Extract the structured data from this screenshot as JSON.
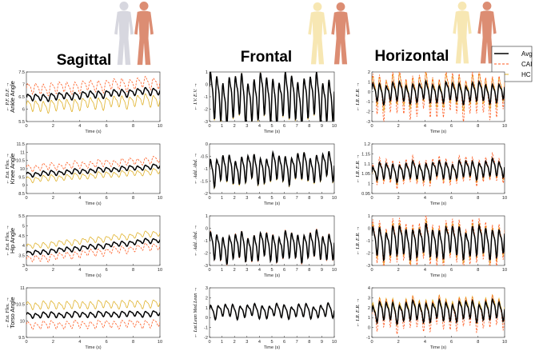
{
  "titles": {
    "sagittal": "Sagittal",
    "frontal": "Frontal",
    "horizontal": "Horizontal"
  },
  "legend": [
    {
      "label": "Avg",
      "color": "#000000",
      "style": "solid"
    },
    {
      "label": "CAI",
      "color": "#ff5a1f",
      "style": "dashed"
    },
    {
      "label": "HC",
      "color": "#e0b22a",
      "style": "solid"
    }
  ],
  "colors": {
    "avg": "#000000",
    "cai": "#ff5a1f",
    "hc": "#e0b22a",
    "figure_light": "#f7e7b3",
    "figure_skin": "#dc8d73",
    "figure_grey": "#d7d7df"
  },
  "chart_data": [
    {
      "type": "line",
      "row": 0,
      "col": 0,
      "ylabel": "Ankle Angle",
      "ydir": "← P.F.   D.F. →",
      "xlabel": "Time (s)",
      "xlim": [
        0,
        10
      ],
      "ylim": [
        5.5,
        7.5
      ],
      "yticks": [
        "5.5",
        "6",
        "6.5",
        "7",
        "7.5"
      ],
      "xticks": [
        "0",
        "2",
        "4",
        "6",
        "8",
        "10"
      ],
      "freq_hz": 1.7,
      "series": [
        {
          "name": "Avg",
          "mean": 6.6,
          "amplitude": 0.12,
          "trend": 0.3
        },
        {
          "name": "CAI",
          "mean": 6.95,
          "amplitude": 0.2,
          "trend": 0.3
        },
        {
          "name": "HC",
          "mean": 6.25,
          "amplitude": 0.2,
          "trend": 0.3
        }
      ]
    },
    {
      "type": "line",
      "row": 0,
      "col": 1,
      "ylabel": "",
      "ydir": "← I.V.   E.V. →",
      "xlabel": "Time (s)",
      "xlim": [
        0,
        10
      ],
      "ylim": [
        -3,
        1
      ],
      "yticks": [
        "-3",
        "-2",
        "-1",
        "0",
        "1"
      ],
      "xticks": [
        "0",
        "1",
        "2",
        "3",
        "4",
        "5",
        "6",
        "7",
        "8",
        "9",
        "10"
      ],
      "freq_hz": 2.0,
      "series": [
        {
          "name": "Avg",
          "mean": -1.0,
          "amplitude": 1.5,
          "trend": 0.0
        },
        {
          "name": "CAI",
          "mean": -1.0,
          "amplitude": 1.5,
          "trend": 0.0
        },
        {
          "name": "HC",
          "mean": -1.05,
          "amplitude": 1.55,
          "trend": 0.0
        }
      ]
    },
    {
      "type": "line",
      "row": 0,
      "col": 2,
      "ylabel": "",
      "ydir": "← I.R.   E.R. →",
      "xlabel": "Time (s)",
      "xlim": [
        0,
        10
      ],
      "ylim": [
        -3,
        2
      ],
      "yticks": [
        "-3",
        "-2",
        "-1",
        "0",
        "1",
        "2"
      ],
      "xticks": [
        "0",
        "2",
        "4",
        "6",
        "8",
        "10"
      ],
      "freq_hz": 2.0,
      "series": [
        {
          "name": "Avg",
          "mean": 0.0,
          "amplitude": 0.8,
          "trend": 0.0
        },
        {
          "name": "CAI",
          "mean": -0.1,
          "amplitude": 1.8,
          "trend": 0.0
        },
        {
          "name": "HC",
          "mean": 0.2,
          "amplitude": 1.3,
          "trend": 0.0
        }
      ]
    },
    {
      "type": "line",
      "row": 1,
      "col": 0,
      "ylabel": "Knee Angle",
      "ydir": "← Ext.   Flex. →",
      "xlabel": "Time (s)",
      "xlim": [
        0,
        10
      ],
      "ylim": [
        8.5,
        11.5
      ],
      "yticks": [
        "8.5",
        "9",
        "9.5",
        "10",
        "10.5",
        "11",
        "11.5"
      ],
      "xticks": [
        "0",
        "2",
        "4",
        "6",
        "8",
        "10"
      ],
      "freq_hz": 1.7,
      "series": [
        {
          "name": "Avg",
          "mean": 9.9,
          "amplitude": 0.12,
          "trend": 0.5
        },
        {
          "name": "CAI",
          "mean": 10.3,
          "amplitude": 0.18,
          "trend": 0.5
        },
        {
          "name": "HC",
          "mean": 9.6,
          "amplitude": 0.15,
          "trend": 0.5
        }
      ]
    },
    {
      "type": "line",
      "row": 1,
      "col": 1,
      "ylabel": "",
      "ydir": "← Add.   Abd. →",
      "xlabel": "Time (s)",
      "xlim": [
        0,
        10
      ],
      "ylim": [
        -2,
        0
      ],
      "yticks": [
        "-2",
        "-1.5",
        "-1",
        "-0.5",
        "0"
      ],
      "xticks": [
        "0",
        "1",
        "2",
        "3",
        "4",
        "5",
        "6",
        "7",
        "8",
        "9",
        "10"
      ],
      "freq_hz": 2.0,
      "series": [
        {
          "name": "Avg",
          "mean": -0.95,
          "amplitude": 0.45,
          "trend": 0.15
        },
        {
          "name": "CAI",
          "mean": -0.95,
          "amplitude": 0.45,
          "trend": 0.15
        },
        {
          "name": "HC",
          "mean": -0.97,
          "amplitude": 0.47,
          "trend": 0.15
        }
      ]
    },
    {
      "type": "line",
      "row": 1,
      "col": 2,
      "ylabel": "",
      "ydir": "← I.R.   E.R. →",
      "xlabel": "Time (s)",
      "xlim": [
        0,
        10
      ],
      "ylim": [
        0.95,
        1.2
      ],
      "yticks": [
        "0.95",
        "1",
        "1.05",
        "1.1",
        "1.15",
        "1.2"
      ],
      "xticks": [
        "0",
        "2",
        "4",
        "6",
        "8",
        "10"
      ],
      "freq_hz": 2.0,
      "series": [
        {
          "name": "Avg",
          "mean": 1.07,
          "amplitude": 0.035,
          "trend": 0.02
        },
        {
          "name": "CAI",
          "mean": 1.07,
          "amplitude": 0.055,
          "trend": 0.02
        },
        {
          "name": "HC",
          "mean": 1.065,
          "amplitude": 0.04,
          "trend": 0.02
        }
      ]
    },
    {
      "type": "line",
      "row": 2,
      "col": 0,
      "ylabel": "Hip Angle",
      "ydir": "← Ext.   Flex. →",
      "xlabel": "Time (s)",
      "xlim": [
        0,
        10
      ],
      "ylim": [
        3,
        5.5
      ],
      "yticks": [
        "3",
        "3.5",
        "4",
        "4.5",
        "5",
        "5.5"
      ],
      "xticks": [
        "0",
        "2",
        "4",
        "6",
        "8",
        "10"
      ],
      "freq_hz": 1.7,
      "series": [
        {
          "name": "Avg",
          "mean": 3.95,
          "amplitude": 0.1,
          "trend": 0.7
        },
        {
          "name": "CAI",
          "mean": 3.65,
          "amplitude": 0.15,
          "trend": 0.7
        },
        {
          "name": "HC",
          "mean": 4.3,
          "amplitude": 0.12,
          "trend": 0.7
        }
      ]
    },
    {
      "type": "line",
      "row": 2,
      "col": 1,
      "ylabel": "",
      "ydir": "← Add.   Abd. →",
      "xlabel": "Time (s)",
      "xlim": [
        0,
        10
      ],
      "ylim": [
        -3,
        1
      ],
      "yticks": [
        "-3",
        "-2",
        "-1",
        "0",
        "1"
      ],
      "xticks": [
        "0",
        "1",
        "2",
        "3",
        "4",
        "5",
        "6",
        "7",
        "8",
        "9",
        "10"
      ],
      "freq_hz": 2.0,
      "series": [
        {
          "name": "Avg",
          "mean": -1.4,
          "amplitude": 0.9,
          "trend": 0.2
        },
        {
          "name": "CAI",
          "mean": -1.4,
          "amplitude": 0.95,
          "trend": 0.2
        },
        {
          "name": "HC",
          "mean": -1.4,
          "amplitude": 0.9,
          "trend": 0.2
        }
      ]
    },
    {
      "type": "line",
      "row": 2,
      "col": 2,
      "ylabel": "",
      "ydir": "← I.R.   E.R. →",
      "xlabel": "Time (s)",
      "xlim": [
        0,
        10
      ],
      "ylim": [
        -3,
        1
      ],
      "yticks": [
        "-3",
        "-2",
        "-1",
        "0",
        "1"
      ],
      "xticks": [
        "0",
        "2",
        "4",
        "6",
        "8",
        "10"
      ],
      "freq_hz": 2.0,
      "series": [
        {
          "name": "Avg",
          "mean": -1.0,
          "amplitude": 1.0,
          "trend": 0.0
        },
        {
          "name": "CAI",
          "mean": -1.0,
          "amplitude": 1.5,
          "trend": 0.0
        },
        {
          "name": "HC",
          "mean": -1.0,
          "amplitude": 1.2,
          "trend": 0.0
        }
      ]
    },
    {
      "type": "line",
      "row": 3,
      "col": 0,
      "ylabel": "Torso Angle",
      "ydir": "← Ext.   Flex. →",
      "xlabel": "Time (s)",
      "xlim": [
        0,
        10
      ],
      "ylim": [
        9.5,
        11
      ],
      "yticks": [
        "9.5",
        "10",
        "10.5",
        "11"
      ],
      "xticks": [
        "0",
        "2",
        "4",
        "6",
        "8",
        "10"
      ],
      "freq_hz": 1.7,
      "series": [
        {
          "name": "Avg",
          "mean": 10.2,
          "amplitude": 0.07,
          "trend": 0.05
        },
        {
          "name": "CAI",
          "mean": 9.9,
          "amplitude": 0.1,
          "trend": 0.05
        },
        {
          "name": "HC",
          "mean": 10.5,
          "amplitude": 0.1,
          "trend": 0.05
        }
      ]
    },
    {
      "type": "line",
      "row": 3,
      "col": 1,
      "ylabel": "",
      "ydir": "← Lat.Lean   Med.Lean →",
      "xlabel": "Time (s)",
      "xlim": [
        0,
        10
      ],
      "ylim": [
        -2,
        3
      ],
      "yticks": [
        "-2",
        "-1",
        "0",
        "1",
        "2",
        "3"
      ],
      "xticks": [
        "0",
        "1",
        "2",
        "3",
        "4",
        "5",
        "6",
        "7",
        "8",
        "9",
        "10"
      ],
      "freq_hz": 1.7,
      "series": [
        {
          "name": "Avg",
          "mean": 0.7,
          "amplitude": 0.55,
          "trend": 0.0
        },
        {
          "name": "CAI",
          "mean": 0.7,
          "amplitude": 0.55,
          "trend": 0.0
        },
        {
          "name": "HC",
          "mean": 0.7,
          "amplitude": 0.55,
          "trend": 0.0
        }
      ]
    },
    {
      "type": "line",
      "row": 3,
      "col": 2,
      "ylabel": "",
      "ydir": "← I.R.   E.R. →",
      "xlabel": "Time (s)",
      "xlim": [
        0,
        10
      ],
      "ylim": [
        -1,
        4
      ],
      "yticks": [
        "-1",
        "0",
        "1",
        "2",
        "3",
        "4"
      ],
      "xticks": [
        "0",
        "2",
        "4",
        "6",
        "8",
        "10"
      ],
      "freq_hz": 2.0,
      "series": [
        {
          "name": "Avg",
          "mean": 1.7,
          "amplitude": 0.8,
          "trend": 0.2
        },
        {
          "name": "CAI",
          "mean": 1.5,
          "amplitude": 1.3,
          "trend": 0.2
        },
        {
          "name": "HC",
          "mean": 1.9,
          "amplitude": 1.0,
          "trend": 0.2
        }
      ]
    }
  ]
}
